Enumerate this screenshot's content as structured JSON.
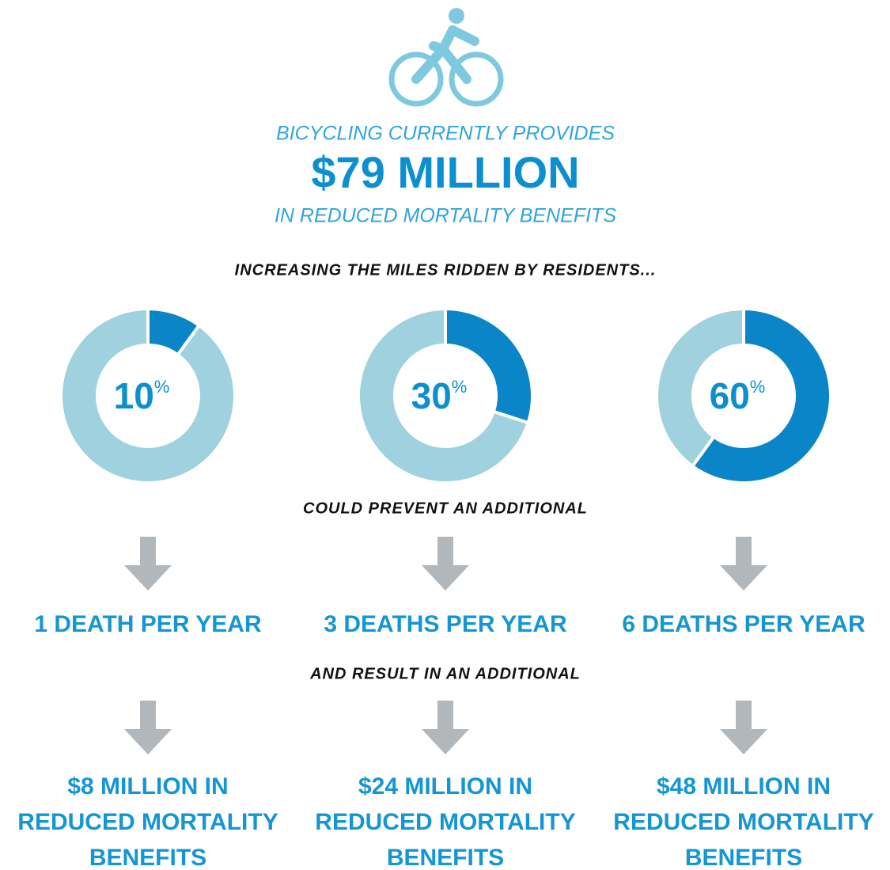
{
  "header": {
    "intro": "BICYCLING CURRENTLY PROVIDES",
    "amount": "$79 MILLION",
    "outro": "IN REDUCED MORTALITY BENEFITS"
  },
  "lead_in": "INCREASING THE MILES RIDDEN BY RESIDENTS...",
  "chart_data": {
    "type": "donut",
    "values": [
      10,
      30,
      60
    ],
    "unit": "%",
    "color": "#0a86c8",
    "track_color": "#9fd1df"
  },
  "middle": "COULD PREVENT AN ADDITIONAL",
  "deaths": [
    "1 DEATH PER YEAR",
    "3 DEATHS PER YEAR",
    "6 DEATHS PER YEAR"
  ],
  "second": "AND RESULT IN AN ADDITIONAL",
  "benefits": [
    [
      "$8 MILLION IN",
      "REDUCED MORTALITY",
      "BENEFITS"
    ],
    [
      "$24 MILLION IN",
      "REDUCED MORTALITY",
      "BENEFITS"
    ],
    [
      "$48 MILLION IN",
      "REDUCED MORTALITY",
      "BENEFITS"
    ]
  ]
}
